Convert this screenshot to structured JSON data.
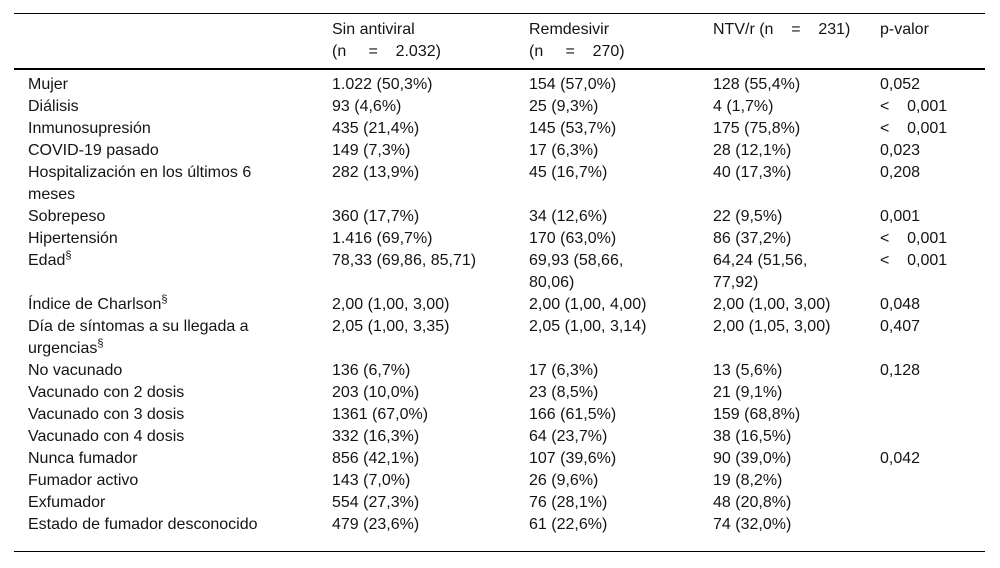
{
  "table": {
    "name": "baseline-characteristics-by-antiviral-treatment",
    "columns": [
      {
        "label": ""
      },
      {
        "label": "Sin antiviral\n(n     =    2.032)"
      },
      {
        "label": "Remdesivir\n(n     =    270)"
      },
      {
        "label": "NTV/r (n    =    231)"
      },
      {
        "label": "p-valor"
      }
    ],
    "rows": [
      {
        "label": "Mujer",
        "sup": "",
        "cells": [
          "1.022 (50,3%)",
          "154 (57,0%)",
          "128 (55,4%)",
          "0,052"
        ]
      },
      {
        "label": "Diálisis",
        "sup": "",
        "cells": [
          "93 (4,6%)",
          "25 (9,3%)",
          "4 (1,7%)",
          "<    0,001"
        ]
      },
      {
        "label": "Inmunosupresión",
        "sup": "",
        "cells": [
          "435 (21,4%)",
          "145 (53,7%)",
          "175 (75,8%)",
          "<    0,001"
        ]
      },
      {
        "label": "COVID-19 pasado",
        "sup": "",
        "cells": [
          "149 (7,3%)",
          "17 (6,3%)",
          "28 (12,1%)",
          "0,023"
        ]
      },
      {
        "label": "Hospitalización en los últimos 6 meses",
        "sup": "",
        "cells": [
          "282 (13,9%)",
          "45 (16,7%)",
          "40 (17,3%)",
          "0,208"
        ]
      },
      {
        "label": "Sobrepeso",
        "sup": "",
        "cells": [
          "360 (17,7%)",
          "34 (12,6%)",
          "22 (9,5%)",
          "0,001"
        ]
      },
      {
        "label": "Hipertensión",
        "sup": "",
        "cells": [
          "1.416 (69,7%)",
          "170 (63,0%)",
          "86 (37,2%)",
          "<    0,001"
        ]
      },
      {
        "label": "Edad",
        "sup": "§",
        "cells": [
          "78,33 (69,86, 85,71)",
          "69,93 (58,66, 80,06)",
          "64,24 (51,56, 77,92)",
          "<    0,001"
        ]
      },
      {
        "label": "Índice de Charlson",
        "sup": "§",
        "cells": [
          "2,00 (1,00, 3,00)",
          "2,00 (1,00, 4,00)",
          "2,00 (1,00, 3,00)",
          "0,048"
        ]
      },
      {
        "label": "Día de síntomas a su llegada a urgencias",
        "sup": "§",
        "cells": [
          "2,05 (1,00, 3,35)",
          "2,05 (1,00, 3,14)",
          "2,00 (1,05, 3,00)",
          "0,407"
        ]
      },
      {
        "label": "No vacunado",
        "sup": "",
        "cells": [
          "136 (6,7%)",
          "17 (6,3%)",
          "13 (5,6%)",
          "0,128"
        ]
      },
      {
        "label": "Vacunado con 2 dosis",
        "sup": "",
        "cells": [
          "203 (10,0%)",
          "23 (8,5%)",
          "21 (9,1%)",
          ""
        ]
      },
      {
        "label": "Vacunado con 3 dosis",
        "sup": "",
        "cells": [
          "1361 (67,0%)",
          "166 (61,5%)",
          "159 (68,8%)",
          ""
        ]
      },
      {
        "label": "Vacunado con 4 dosis",
        "sup": "",
        "cells": [
          "332 (16,3%)",
          "64 (23,7%)",
          "38 (16,5%)",
          ""
        ]
      },
      {
        "label": "Nunca fumador",
        "sup": "",
        "cells": [
          "856 (42,1%)",
          "107 (39,6%)",
          "90 (39,0%)",
          "0,042"
        ]
      },
      {
        "label": "Fumador activo",
        "sup": "",
        "cells": [
          "143 (7,0%)",
          "26 (9,6%)",
          "19 (8,2%)",
          ""
        ]
      },
      {
        "label": "Exfumador",
        "sup": "",
        "cells": [
          "554 (27,3%)",
          "76 (28,1%)",
          "48 (20,8%)",
          ""
        ]
      },
      {
        "label": "Estado de fumador desconocido",
        "sup": "",
        "cells": [
          "479 (23,6%)",
          "61 (22,6%)",
          "74 (32,0%)",
          ""
        ]
      }
    ]
  }
}
